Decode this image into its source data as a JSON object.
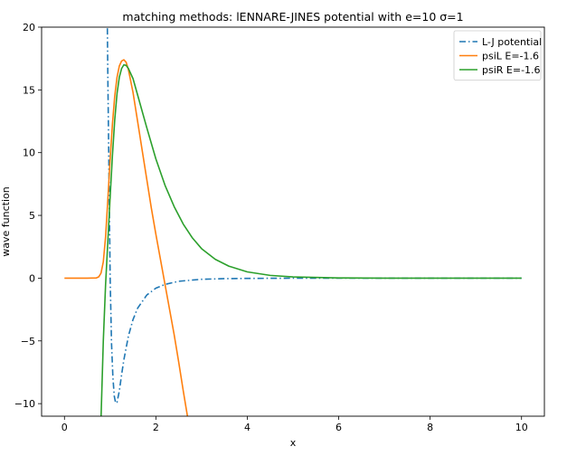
{
  "chart_data": {
    "type": "line",
    "title": "matching methods: lENNARE-JINES potential with e=10 σ=1",
    "xlabel": "x",
    "ylabel": "wave function",
    "xlim": [
      -0.5,
      10.5
    ],
    "ylim": [
      -11,
      20
    ],
    "x_ticks": [
      0,
      2,
      4,
      6,
      8,
      10
    ],
    "y_ticks": [
      -10,
      -5,
      0,
      5,
      10,
      15,
      20
    ],
    "grid": false,
    "legend_position": "top-right",
    "series": [
      {
        "name": "L-J potential",
        "color": "#1f77b4",
        "style": "dashdot",
        "points": [
          [
            0.933,
            22
          ],
          [
            0.95,
            15.8
          ],
          [
            0.97,
            9.6
          ],
          [
            1.0,
            0
          ],
          [
            1.03,
            -5.2
          ],
          [
            1.06,
            -7.9
          ],
          [
            1.09,
            -9.4
          ],
          [
            1.12,
            -9.95
          ],
          [
            1.15,
            -9.9
          ],
          [
            1.2,
            -9.0
          ],
          [
            1.25,
            -7.7
          ],
          [
            1.3,
            -6.5
          ],
          [
            1.4,
            -4.6
          ],
          [
            1.5,
            -3.3
          ],
          [
            1.6,
            -2.4
          ],
          [
            1.8,
            -1.35
          ],
          [
            2.0,
            -0.8
          ],
          [
            2.2,
            -0.5
          ],
          [
            2.5,
            -0.25
          ],
          [
            3.0,
            -0.09
          ],
          [
            3.5,
            -0.04
          ],
          [
            4.0,
            -0.02
          ],
          [
            5.0,
            -0.005
          ],
          [
            6.0,
            0
          ],
          [
            8.0,
            0
          ],
          [
            10.0,
            0
          ]
        ]
      },
      {
        "name": "psiL E=-1.6",
        "color": "#ff7f0e",
        "style": "solid",
        "points": [
          [
            0.0,
            0
          ],
          [
            0.5,
            0
          ],
          [
            0.7,
            0.02
          ],
          [
            0.75,
            0.1
          ],
          [
            0.8,
            0.4
          ],
          [
            0.85,
            1.3
          ],
          [
            0.9,
            3.3
          ],
          [
            0.95,
            6.3
          ],
          [
            1.0,
            9.5
          ],
          [
            1.05,
            12.3
          ],
          [
            1.1,
            14.5
          ],
          [
            1.15,
            16.0
          ],
          [
            1.2,
            16.9
          ],
          [
            1.25,
            17.3
          ],
          [
            1.3,
            17.4
          ],
          [
            1.35,
            17.2
          ],
          [
            1.4,
            16.6
          ],
          [
            1.5,
            14.8
          ],
          [
            1.6,
            12.5
          ],
          [
            1.7,
            10.2
          ],
          [
            1.8,
            7.9
          ],
          [
            1.9,
            5.6
          ],
          [
            2.0,
            3.5
          ],
          [
            2.1,
            1.5
          ],
          [
            2.2,
            -0.5
          ],
          [
            2.3,
            -2.5
          ],
          [
            2.4,
            -4.5
          ],
          [
            2.5,
            -6.7
          ],
          [
            2.6,
            -9.0
          ],
          [
            2.7,
            -11.2
          ]
        ]
      },
      {
        "name": "psiR E=-1.6",
        "color": "#2ca02c",
        "style": "solid",
        "points": [
          [
            0.8,
            -11.2
          ],
          [
            0.85,
            -5.0
          ],
          [
            0.9,
            -0.5
          ],
          [
            0.95,
            3.0
          ],
          [
            1.0,
            6.5
          ],
          [
            1.05,
            9.8
          ],
          [
            1.1,
            12.6
          ],
          [
            1.15,
            14.7
          ],
          [
            1.2,
            16.0
          ],
          [
            1.25,
            16.7
          ],
          [
            1.3,
            17.0
          ],
          [
            1.35,
            16.95
          ],
          [
            1.4,
            16.7
          ],
          [
            1.5,
            15.9
          ],
          [
            1.6,
            14.6
          ],
          [
            1.8,
            12.0
          ],
          [
            2.0,
            9.5
          ],
          [
            2.2,
            7.4
          ],
          [
            2.4,
            5.7
          ],
          [
            2.6,
            4.3
          ],
          [
            2.8,
            3.2
          ],
          [
            3.0,
            2.35
          ],
          [
            3.3,
            1.5
          ],
          [
            3.6,
            0.95
          ],
          [
            4.0,
            0.5
          ],
          [
            4.5,
            0.22
          ],
          [
            5.0,
            0.1
          ],
          [
            6.0,
            0.02
          ],
          [
            7.0,
            0
          ],
          [
            8.0,
            0
          ],
          [
            9.0,
            0
          ],
          [
            10.0,
            0
          ]
        ]
      }
    ]
  }
}
